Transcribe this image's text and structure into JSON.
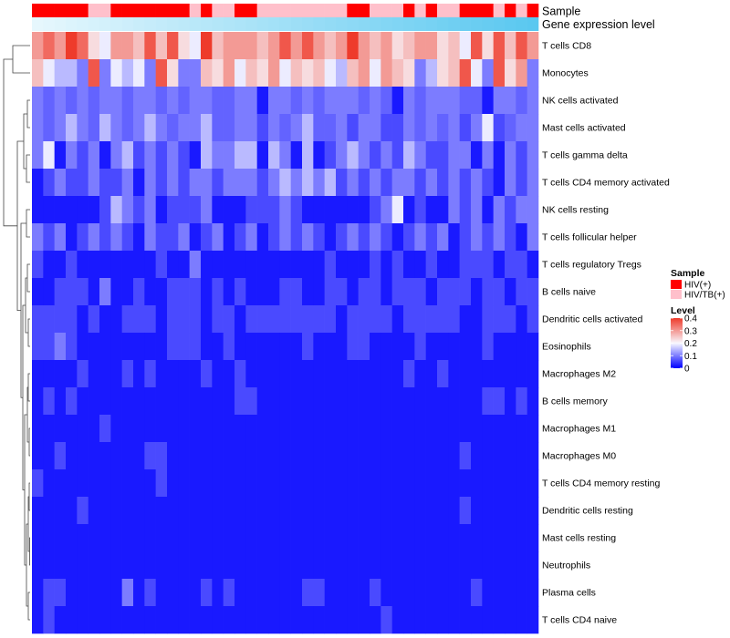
{
  "chart_data": {
    "type": "heatmap",
    "annotation_rows": [
      "Sample",
      "Gene expression level"
    ],
    "rows": [
      "T cells CD8",
      "Monocytes",
      "NK cells activated",
      "Mast cells activated",
      "T cells gamma delta",
      "T cells CD4 memory activated",
      "NK cells resting",
      "T cells follicular helper",
      "T cells regulatory  Tregs",
      "B cells naive",
      "Dendritic cells activated",
      "Eosinophils",
      "Macrophages M2",
      "B cells memory",
      "Macrophages M1",
      "Macrophages M0",
      "T cells CD4 memory resting",
      "Dendritic cells resting",
      "Mast cells resting",
      "Neutrophils",
      "Plasma cells",
      "T cells CD4 naive"
    ],
    "sample_groups": [
      "HIV(+)",
      "HIV(+)",
      "HIV(+)",
      "HIV(+)",
      "HIV(+)",
      "HIV/TB(+)",
      "HIV/TB(+)",
      "HIV(+)",
      "HIV(+)",
      "HIV(+)",
      "HIV(+)",
      "HIV(+)",
      "HIV(+)",
      "HIV(+)",
      "HIV/TB(+)",
      "HIV(+)",
      "HIV/TB(+)",
      "HIV/TB(+)",
      "HIV(+)",
      "HIV(+)",
      "HIV/TB(+)",
      "HIV/TB(+)",
      "HIV/TB(+)",
      "HIV/TB(+)",
      "HIV/TB(+)",
      "HIV/TB(+)",
      "HIV/TB(+)",
      "HIV/TB(+)",
      "HIV(+)",
      "HIV(+)",
      "HIV/TB(+)",
      "HIV/TB(+)",
      "HIV/TB(+)",
      "HIV(+)",
      "HIV/TB(+)",
      "HIV(+)",
      "HIV/TB(+)",
      "HIV/TB(+)",
      "HIV(+)",
      "HIV(+)",
      "HIV(+)",
      "HIV/TB(+)",
      "HIV(+)",
      "HIV/TB(+)",
      "HIV(+)"
    ],
    "expression_level_range": [
      0,
      1
    ],
    "values": [
      [
        0.3,
        0.35,
        0.3,
        0.4,
        0.35,
        0.23,
        0.19,
        0.3,
        0.3,
        0.26,
        0.37,
        0.26,
        0.37,
        0.23,
        0.19,
        0.4,
        0.26,
        0.3,
        0.3,
        0.3,
        0.26,
        0.3,
        0.37,
        0.3,
        0.37,
        0.3,
        0.26,
        0.3,
        0.4,
        0.3,
        0.26,
        0.3,
        0.23,
        0.26,
        0.3,
        0.3,
        0.23,
        0.26,
        0.19,
        0.37,
        0.23,
        0.37,
        0.26,
        0.37,
        0.3
      ],
      [
        0.26,
        0.19,
        0.15,
        0.15,
        0.1,
        0.37,
        0.1,
        0.19,
        0.15,
        0.19,
        0.1,
        0.37,
        0.23,
        0.1,
        0.1,
        0.26,
        0.23,
        0.3,
        0.19,
        0.26,
        0.23,
        0.3,
        0.19,
        0.26,
        0.23,
        0.26,
        0.19,
        0.15,
        0.26,
        0.3,
        0.19,
        0.3,
        0.26,
        0.23,
        0.1,
        0.15,
        0.23,
        0.26,
        0.37,
        0.19,
        0.1,
        0.37,
        0.23,
        0.3,
        0.1
      ],
      [
        0.1,
        0.08,
        0.1,
        0.08,
        0.1,
        0.08,
        0.1,
        0.1,
        0.08,
        0.1,
        0.1,
        0.08,
        0.1,
        0.08,
        0.1,
        0.1,
        0.08,
        0.08,
        0.1,
        0.1,
        0.02,
        0.1,
        0.1,
        0.08,
        0.1,
        0.08,
        0.1,
        0.1,
        0.1,
        0.08,
        0.1,
        0.08,
        0.02,
        0.1,
        0.08,
        0.1,
        0.1,
        0.1,
        0.08,
        0.08,
        0.02,
        0.1,
        0.1,
        0.08,
        0.1
      ],
      [
        0.1,
        0.08,
        0.1,
        0.15,
        0.1,
        0.08,
        0.15,
        0.1,
        0.08,
        0.1,
        0.15,
        0.1,
        0.08,
        0.1,
        0.1,
        0.15,
        0.08,
        0.08,
        0.1,
        0.1,
        0.06,
        0.1,
        0.08,
        0.1,
        0.15,
        0.08,
        0.08,
        0.1,
        0.06,
        0.1,
        0.1,
        0.06,
        0.06,
        0.1,
        0.08,
        0.1,
        0.08,
        0.1,
        0.06,
        0.1,
        0.19,
        0.06,
        0.08,
        0.1,
        0.1
      ],
      [
        0.1,
        0.19,
        0.02,
        0.1,
        0.06,
        0.1,
        0.02,
        0.1,
        0.15,
        0.06,
        0.1,
        0.06,
        0.1,
        0.06,
        0.02,
        0.15,
        0.1,
        0.1,
        0.15,
        0.15,
        0.02,
        0.15,
        0.1,
        0.02,
        0.15,
        0.02,
        0.06,
        0.1,
        0.15,
        0.1,
        0.06,
        0.1,
        0.06,
        0.15,
        0.1,
        0.06,
        0.06,
        0.1,
        0.1,
        0.02,
        0.1,
        0.02,
        0.1,
        0.06,
        0.1
      ],
      [
        0.02,
        0.06,
        0.1,
        0.06,
        0.06,
        0.1,
        0.06,
        0.06,
        0.1,
        0.02,
        0.1,
        0.06,
        0.1,
        0.06,
        0.1,
        0.1,
        0.06,
        0.1,
        0.1,
        0.1,
        0.06,
        0.1,
        0.15,
        0.1,
        0.15,
        0.1,
        0.15,
        0.06,
        0.1,
        0.06,
        0.1,
        0.06,
        0.1,
        0.1,
        0.06,
        0.1,
        0.06,
        0.1,
        0.06,
        0.1,
        0.06,
        0.02,
        0.1,
        0.06,
        0.1
      ],
      [
        0.02,
        0.02,
        0.02,
        0.02,
        0.02,
        0.02,
        0.06,
        0.15,
        0.1,
        0.06,
        0.1,
        0.02,
        0.06,
        0.06,
        0.06,
        0.1,
        0.02,
        0.02,
        0.02,
        0.06,
        0.06,
        0.06,
        0.1,
        0.06,
        0.02,
        0.02,
        0.02,
        0.02,
        0.02,
        0.02,
        0.06,
        0.1,
        0.19,
        0.02,
        0.06,
        0.02,
        0.02,
        0.1,
        0.06,
        0.1,
        0.02,
        0.1,
        0.06,
        0.1,
        0.1
      ],
      [
        0.1,
        0.06,
        0.1,
        0.02,
        0.06,
        0.1,
        0.06,
        0.1,
        0.06,
        0.02,
        0.1,
        0.06,
        0.06,
        0.1,
        0.02,
        0.06,
        0.1,
        0.02,
        0.06,
        0.1,
        0.02,
        0.06,
        0.1,
        0.06,
        0.1,
        0.06,
        0.02,
        0.06,
        0.1,
        0.06,
        0.1,
        0.06,
        0.02,
        0.06,
        0.1,
        0.06,
        0.1,
        0.02,
        0.06,
        0.1,
        0.06,
        0.1,
        0.06,
        0.02,
        0.1
      ],
      [
        0.06,
        0.02,
        0.02,
        0.06,
        0.02,
        0.02,
        0.02,
        0.02,
        0.02,
        0.02,
        0.02,
        0.06,
        0.02,
        0.02,
        0.1,
        0.02,
        0.02,
        0.02,
        0.02,
        0.02,
        0.02,
        0.02,
        0.02,
        0.02,
        0.02,
        0.02,
        0.06,
        0.02,
        0.02,
        0.02,
        0.06,
        0.02,
        0.06,
        0.02,
        0.02,
        0.06,
        0.02,
        0.02,
        0.06,
        0.06,
        0.06,
        0.02,
        0.06,
        0.06,
        0.02
      ],
      [
        0.02,
        0.02,
        0.06,
        0.06,
        0.06,
        0.02,
        0.1,
        0.02,
        0.02,
        0.06,
        0.02,
        0.02,
        0.06,
        0.06,
        0.06,
        0.02,
        0.06,
        0.02,
        0.06,
        0.02,
        0.02,
        0.02,
        0.06,
        0.06,
        0.02,
        0.02,
        0.06,
        0.06,
        0.02,
        0.06,
        0.06,
        0.02,
        0.06,
        0.06,
        0.06,
        0.02,
        0.06,
        0.06,
        0.06,
        0.02,
        0.06,
        0.06,
        0.02,
        0.06,
        0.06
      ],
      [
        0.06,
        0.06,
        0.06,
        0.06,
        0.02,
        0.06,
        0.02,
        0.02,
        0.06,
        0.06,
        0.06,
        0.02,
        0.06,
        0.06,
        0.06,
        0.02,
        0.06,
        0.06,
        0.02,
        0.06,
        0.06,
        0.06,
        0.06,
        0.06,
        0.06,
        0.06,
        0.06,
        0.02,
        0.06,
        0.06,
        0.06,
        0.06,
        0.02,
        0.06,
        0.06,
        0.06,
        0.06,
        0.06,
        0.02,
        0.02,
        0.06,
        0.06,
        0.06,
        0.02,
        0.06
      ],
      [
        0.06,
        0.06,
        0.1,
        0.06,
        0.02,
        0.02,
        0.02,
        0.02,
        0.02,
        0.02,
        0.02,
        0.02,
        0.06,
        0.06,
        0.06,
        0.02,
        0.02,
        0.06,
        0.02,
        0.02,
        0.02,
        0.02,
        0.02,
        0.02,
        0.06,
        0.02,
        0.02,
        0.02,
        0.06,
        0.06,
        0.02,
        0.02,
        0.02,
        0.02,
        0.06,
        0.02,
        0.02,
        0.02,
        0.02,
        0.02,
        0.06,
        0.02,
        0.02,
        0.02,
        0.02
      ],
      [
        0.02,
        0.02,
        0.02,
        0.02,
        0.06,
        0.02,
        0.02,
        0.02,
        0.06,
        0.02,
        0.06,
        0.02,
        0.02,
        0.02,
        0.02,
        0.06,
        0.02,
        0.02,
        0.06,
        0.02,
        0.02,
        0.02,
        0.02,
        0.02,
        0.02,
        0.02,
        0.02,
        0.02,
        0.02,
        0.02,
        0.02,
        0.02,
        0.02,
        0.06,
        0.02,
        0.02,
        0.06,
        0.02,
        0.02,
        0.02,
        0.02,
        0.02,
        0.02,
        0.02,
        0.02
      ],
      [
        0.02,
        0.06,
        0.02,
        0.06,
        0.02,
        0.02,
        0.02,
        0.02,
        0.02,
        0.02,
        0.02,
        0.02,
        0.02,
        0.02,
        0.02,
        0.02,
        0.02,
        0.02,
        0.06,
        0.06,
        0.02,
        0.02,
        0.02,
        0.02,
        0.02,
        0.02,
        0.02,
        0.02,
        0.02,
        0.02,
        0.02,
        0.02,
        0.02,
        0.02,
        0.02,
        0.02,
        0.02,
        0.02,
        0.02,
        0.02,
        0.06,
        0.06,
        0.02,
        0.06,
        0.02
      ],
      [
        0.02,
        0.02,
        0.02,
        0.02,
        0.02,
        0.02,
        0.06,
        0.02,
        0.02,
        0.02,
        0.02,
        0.02,
        0.02,
        0.02,
        0.02,
        0.02,
        0.02,
        0.02,
        0.02,
        0.02,
        0.02,
        0.02,
        0.02,
        0.02,
        0.02,
        0.02,
        0.02,
        0.02,
        0.02,
        0.02,
        0.02,
        0.02,
        0.02,
        0.02,
        0.02,
        0.02,
        0.02,
        0.02,
        0.02,
        0.02,
        0.02,
        0.02,
        0.02,
        0.02,
        0.02
      ],
      [
        0.02,
        0.02,
        0.06,
        0.02,
        0.02,
        0.02,
        0.02,
        0.02,
        0.02,
        0.02,
        0.06,
        0.06,
        0.02,
        0.02,
        0.02,
        0.02,
        0.02,
        0.02,
        0.02,
        0.02,
        0.02,
        0.02,
        0.02,
        0.02,
        0.02,
        0.02,
        0.02,
        0.02,
        0.02,
        0.02,
        0.02,
        0.02,
        0.02,
        0.02,
        0.02,
        0.02,
        0.02,
        0.02,
        0.06,
        0.02,
        0.02,
        0.02,
        0.02,
        0.02,
        0.02
      ],
      [
        0.06,
        0.02,
        0.02,
        0.02,
        0.02,
        0.02,
        0.02,
        0.02,
        0.02,
        0.02,
        0.02,
        0.06,
        0.02,
        0.02,
        0.02,
        0.02,
        0.02,
        0.02,
        0.02,
        0.02,
        0.02,
        0.02,
        0.02,
        0.02,
        0.02,
        0.02,
        0.02,
        0.02,
        0.02,
        0.02,
        0.02,
        0.02,
        0.02,
        0.02,
        0.02,
        0.02,
        0.02,
        0.02,
        0.02,
        0.02,
        0.02,
        0.02,
        0.02,
        0.02,
        0.02
      ],
      [
        0.02,
        0.02,
        0.02,
        0.02,
        0.06,
        0.02,
        0.02,
        0.02,
        0.02,
        0.02,
        0.02,
        0.02,
        0.02,
        0.02,
        0.02,
        0.02,
        0.02,
        0.02,
        0.02,
        0.02,
        0.02,
        0.02,
        0.02,
        0.02,
        0.02,
        0.02,
        0.02,
        0.02,
        0.02,
        0.02,
        0.02,
        0.02,
        0.02,
        0.02,
        0.02,
        0.02,
        0.02,
        0.02,
        0.06,
        0.02,
        0.02,
        0.02,
        0.02,
        0.02,
        0.02
      ],
      [
        0.02,
        0.02,
        0.02,
        0.02,
        0.02,
        0.02,
        0.02,
        0.02,
        0.02,
        0.02,
        0.02,
        0.02,
        0.02,
        0.02,
        0.02,
        0.02,
        0.02,
        0.02,
        0.02,
        0.02,
        0.02,
        0.02,
        0.02,
        0.02,
        0.02,
        0.02,
        0.02,
        0.02,
        0.02,
        0.02,
        0.02,
        0.02,
        0.02,
        0.02,
        0.02,
        0.02,
        0.02,
        0.02,
        0.02,
        0.02,
        0.02,
        0.02,
        0.02,
        0.02,
        0.02
      ],
      [
        0.02,
        0.02,
        0.02,
        0.02,
        0.02,
        0.02,
        0.02,
        0.02,
        0.02,
        0.02,
        0.02,
        0.02,
        0.02,
        0.02,
        0.02,
        0.02,
        0.02,
        0.02,
        0.02,
        0.02,
        0.02,
        0.02,
        0.02,
        0.02,
        0.02,
        0.02,
        0.02,
        0.02,
        0.02,
        0.02,
        0.02,
        0.02,
        0.02,
        0.02,
        0.02,
        0.02,
        0.02,
        0.02,
        0.02,
        0.02,
        0.02,
        0.02,
        0.02,
        0.02,
        0.02
      ],
      [
        0.02,
        0.06,
        0.06,
        0.02,
        0.02,
        0.02,
        0.02,
        0.02,
        0.1,
        0.02,
        0.06,
        0.02,
        0.02,
        0.02,
        0.02,
        0.06,
        0.02,
        0.06,
        0.02,
        0.02,
        0.02,
        0.02,
        0.02,
        0.02,
        0.06,
        0.06,
        0.02,
        0.02,
        0.02,
        0.02,
        0.06,
        0.02,
        0.02,
        0.02,
        0.02,
        0.02,
        0.02,
        0.02,
        0.02,
        0.06,
        0.02,
        0.02,
        0.02,
        0.02,
        0.02
      ],
      [
        0.02,
        0.06,
        0.02,
        0.02,
        0.02,
        0.02,
        0.02,
        0.02,
        0.02,
        0.02,
        0.02,
        0.02,
        0.02,
        0.02,
        0.02,
        0.02,
        0.02,
        0.02,
        0.02,
        0.02,
        0.02,
        0.02,
        0.02,
        0.02,
        0.02,
        0.02,
        0.02,
        0.02,
        0.02,
        0.02,
        0.02,
        0.06,
        0.02,
        0.02,
        0.02,
        0.02,
        0.02,
        0.02,
        0.02,
        0.02,
        0.02,
        0.02,
        0.02,
        0.02,
        0.02
      ]
    ],
    "legend": {
      "sample_title": "Sample",
      "sample_entries": [
        {
          "label": "HIV(+)",
          "color": "#ff0000"
        },
        {
          "label": "HIV/TB(+)",
          "color": "#ffc0cb"
        }
      ],
      "level_title": "Level",
      "level_ticks": [
        0.4,
        0.3,
        0.2,
        0.1,
        0
      ],
      "level_range": [
        0,
        0.4
      ]
    },
    "colors": {
      "low": "#0000ff",
      "mid": "#f8f8ff",
      "high": "#ee3b2b",
      "expr_low": "#e6f7fd",
      "expr_high": "#5ac8f0",
      "dendrogram": "#444444"
    }
  }
}
